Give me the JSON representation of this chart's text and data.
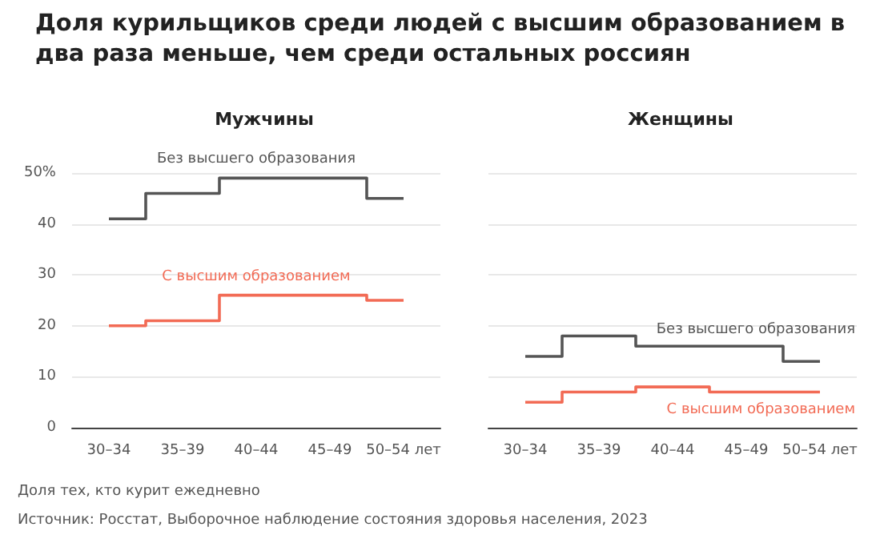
{
  "chart_data": [
    {
      "type": "step",
      "title": "Доля курильщиков среди людей с высшим образованием в два раза меньше, чем среди остальных россиян",
      "subtitle": "Мужчины",
      "categories": [
        "30–34",
        "35–39",
        "40–44",
        "45–49",
        "50–54 лет"
      ],
      "series": [
        {
          "name": "Без высшего образования",
          "color": "#555555",
          "values": [
            41,
            46,
            49,
            49,
            45
          ]
        },
        {
          "name": "С высшим образованием",
          "color": "#f26b55",
          "values": [
            20,
            21,
            26,
            26,
            25
          ]
        }
      ],
      "ylim": [
        0,
        50
      ],
      "yticks": [
        0,
        10,
        20,
        30,
        40,
        {
          "value": 50,
          "label": "50%"
        }
      ],
      "grid": "y",
      "legend": false,
      "marker": "none",
      "annotations": [
        "Доля тех, кто курит ежедневно",
        "Источник: Росстат, Выборочное наблюдение состояния здоровья населения, 2023"
      ]
    },
    {
      "type": "step",
      "subtitle": "Женщины",
      "categories": [
        "30–34",
        "35–39",
        "40–44",
        "45–49",
        "50–54 лет"
      ],
      "series": [
        {
          "name": "Без высшего образования",
          "color": "#555555",
          "values": [
            14,
            18,
            16,
            16,
            13
          ]
        },
        {
          "name": "С высшим образованием",
          "color": "#f26b55",
          "values": [
            5,
            7,
            8,
            7,
            7
          ]
        }
      ],
      "ylim": [
        0,
        50
      ],
      "yticks": [
        0,
        10,
        20,
        30,
        40,
        50
      ],
      "grid": "y",
      "legend": false,
      "marker": "none",
      "tick_labels": "x"
    }
  ]
}
